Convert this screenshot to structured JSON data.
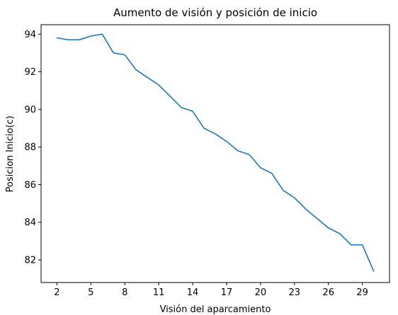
{
  "chart_data": {
    "type": "line",
    "title": "Aumento de visión y posición de inicio",
    "xlabel": "Visión del aparcamiento",
    "ylabel": "Posicion Inicio(c)",
    "xlim": [
      0.6,
      31.4
    ],
    "ylim": [
      80.8,
      94.5
    ],
    "xticks": [
      2,
      5,
      8,
      11,
      14,
      17,
      20,
      23,
      26,
      29
    ],
    "yticks": [
      82,
      84,
      86,
      88,
      90,
      92,
      94
    ],
    "grid": false,
    "series": [
      {
        "color": "#1f77b4",
        "x": [
          2,
          3,
          4,
          5,
          6,
          7,
          8,
          9,
          10,
          11,
          12,
          13,
          14,
          15,
          16,
          17,
          18,
          19,
          20,
          21,
          22,
          23,
          24,
          25,
          26,
          27,
          28,
          29,
          30
        ],
        "values": [
          93.8,
          93.7,
          93.7,
          93.9,
          94.0,
          93.0,
          92.9,
          92.1,
          91.7,
          91.3,
          90.7,
          90.1,
          89.9,
          89.0,
          88.7,
          88.3,
          87.8,
          87.6,
          86.9,
          86.6,
          85.7,
          85.3,
          84.7,
          84.2,
          83.7,
          83.4,
          82.8,
          82.8,
          81.4
        ]
      }
    ]
  }
}
